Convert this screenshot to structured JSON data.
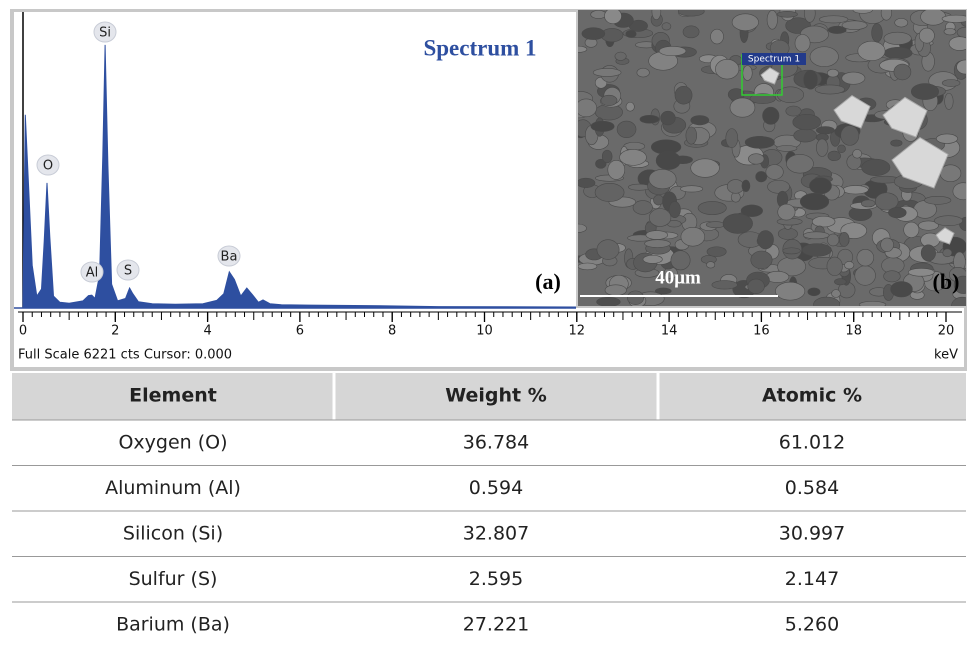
{
  "chart_data": {
    "type": "area",
    "title": "Spectrum 1",
    "panel_label": "(a)",
    "color": "#2e4fa0",
    "x": [
      0,
      0.05,
      0.12,
      0.2,
      0.3,
      0.4,
      0.46,
      0.52,
      0.58,
      0.66,
      0.8,
      1.0,
      1.3,
      1.42,
      1.49,
      1.56,
      1.66,
      1.73,
      1.78,
      1.84,
      1.92,
      2.05,
      2.22,
      2.31,
      2.38,
      2.5,
      2.8,
      3.3,
      3.9,
      4.2,
      4.35,
      4.47,
      4.58,
      4.72,
      4.85,
      4.97,
      5.1,
      5.2,
      5.35,
      5.6,
      6.2,
      7.5,
      9,
      12
    ],
    "values": [
      200,
      4060,
      2600,
      900,
      250,
      400,
      1400,
      2630,
      1500,
      250,
      120,
      100,
      150,
      260,
      270,
      200,
      700,
      3200,
      5530,
      3000,
      500,
      150,
      200,
      420,
      300,
      130,
      90,
      80,
      90,
      160,
      300,
      760,
      600,
      250,
      420,
      280,
      120,
      170,
      90,
      70,
      60,
      50,
      30,
      20
    ],
    "xlim": [
      0,
      20
    ],
    "ylim": [
      0,
      6221
    ],
    "xticks": [
      0,
      2,
      4,
      6,
      8,
      10,
      12,
      14,
      16,
      18,
      20
    ],
    "x_unit": "keV",
    "status": "Full Scale 6221 cts Cursor: 0.000",
    "annotations": [
      "Si",
      "O",
      "Al",
      "S",
      "Ba"
    ]
  },
  "image": {
    "panel_label": "(b)",
    "region_label": "Spectrum 1",
    "scale_bar": "40μm"
  },
  "table": {
    "header": [
      "Element",
      "Weight %",
      "Atomic %"
    ],
    "rows": [
      [
        "Oxygen (O)",
        "36.784",
        "61.012"
      ],
      [
        "Aluminum (Al)",
        "0.594",
        "0.584"
      ],
      [
        "Silicon (Si)",
        "32.807",
        "30.997"
      ],
      [
        "Sulfur (S)",
        "2.595",
        "2.147"
      ],
      [
        "Barium (Ba)",
        "27.221",
        "5.260"
      ]
    ]
  }
}
